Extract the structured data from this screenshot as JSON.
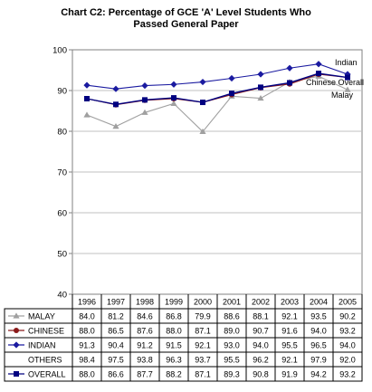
{
  "chart_data": {
    "type": "line",
    "title_line1": "Chart C2:  Percentage of GCE 'A' Level Students Who",
    "title_line2": "Passed General Paper",
    "ylim": [
      40,
      100
    ],
    "yticks": [
      "40",
      "50",
      "60",
      "70",
      "80",
      "90",
      "100"
    ],
    "categories": [
      "1996",
      "1997",
      "1998",
      "1999",
      "2000",
      "2001",
      "2002",
      "2003",
      "2004",
      "2005"
    ],
    "grid": true,
    "series": [
      {
        "name": "MALAY",
        "label": "Malay",
        "color": "#a0a0a0",
        "marker": "triangle",
        "values": [
          84.0,
          81.2,
          84.6,
          86.8,
          79.9,
          88.6,
          88.1,
          92.1,
          93.5,
          90.2
        ],
        "display": [
          "84.0",
          "81.2",
          "84.6",
          "86.8",
          "79.9",
          "88.6",
          "88.1",
          "92.1",
          "93.5",
          "90.2"
        ]
      },
      {
        "name": "CHINESE",
        "label": "",
        "color": "#8b1a1a",
        "marker": "circle",
        "values": [
          88.0,
          86.5,
          87.6,
          88.0,
          87.1,
          89.0,
          90.7,
          91.6,
          94.0,
          93.2
        ],
        "display": [
          "88.0",
          "86.5",
          "87.6",
          "88.0",
          "87.1",
          "89.0",
          "90.7",
          "91.6",
          "94.0",
          "93.2"
        ]
      },
      {
        "name": "INDIAN",
        "label": "Indian",
        "color": "#1a1aa0",
        "marker": "diamond",
        "values": [
          91.3,
          90.4,
          91.2,
          91.5,
          92.1,
          93.0,
          94.0,
          95.5,
          96.5,
          94.0
        ],
        "display": [
          "91.3",
          "90.4",
          "91.2",
          "91.5",
          "92.1",
          "93.0",
          "94.0",
          "95.5",
          "96.5",
          "94.0"
        ]
      },
      {
        "name": "OTHERS",
        "label": "",
        "color": "",
        "marker": "none",
        "values": [
          98.4,
          97.5,
          93.8,
          96.3,
          93.7,
          95.5,
          96.2,
          92.1,
          97.9,
          92.0
        ],
        "display": [
          "98.4",
          "97.5",
          "93.8",
          "96.3",
          "93.7",
          "95.5",
          "96.2",
          "92.1",
          "97.9",
          "92.0"
        ]
      },
      {
        "name": "OVERALL",
        "label": "",
        "color": "#000080",
        "marker": "square",
        "values": [
          88.0,
          86.6,
          87.7,
          88.2,
          87.1,
          89.3,
          90.8,
          91.9,
          94.2,
          93.2
        ],
        "display": [
          "88.0",
          "86.6",
          "87.7",
          "88.2",
          "87.1",
          "89.3",
          "90.8",
          "91.9",
          "94.2",
          "93.2"
        ]
      }
    ],
    "annotation_chinese_overall": "Chinese Overall"
  }
}
